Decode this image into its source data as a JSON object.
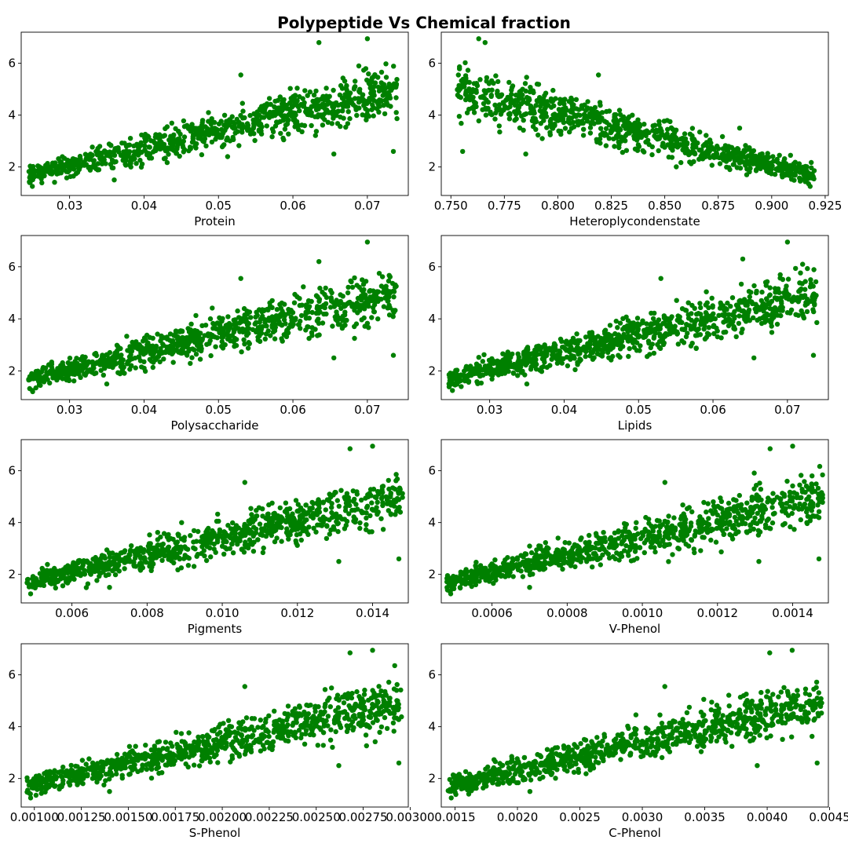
{
  "figure": {
    "title": "Polypeptide Vs Chemical fraction",
    "marker_color": "#008000"
  },
  "chart_data": [
    {
      "type": "scatter",
      "xlabel": "Protein",
      "xlim": [
        0.0235,
        0.0755
      ],
      "ylim": [
        0.9,
        7.2
      ],
      "xticks": [
        0.03,
        0.04,
        0.05,
        0.06,
        0.07
      ],
      "xticklabels": [
        "0.03",
        "0.04",
        "0.05",
        "0.06",
        "0.07"
      ],
      "yticks": [
        2,
        4,
        6
      ],
      "yticklabels": [
        "2",
        "4",
        "6"
      ],
      "grid": false,
      "trend": {
        "x": [
          0.0245,
          0.074
        ],
        "y": [
          1.7,
          5.0
        ]
      },
      "x_range": [
        0.0245,
        0.074
      ],
      "outliers": [
        [
          0.0735,
          2.6
        ],
        [
          0.0655,
          2.5
        ],
        [
          0.053,
          5.55
        ],
        [
          0.0635,
          6.8
        ],
        [
          0.07,
          6.95
        ],
        [
          0.025,
          1.25
        ],
        [
          0.036,
          1.5
        ]
      ]
    },
    {
      "type": "scatter",
      "xlabel": "Heteroplycondenstate",
      "xlim": [
        0.7455,
        0.9265
      ],
      "ylim": [
        0.9,
        7.2
      ],
      "xticks": [
        0.75,
        0.775,
        0.8,
        0.825,
        0.85,
        0.875,
        0.9,
        0.925
      ],
      "xticklabels": [
        "0.750",
        "0.775",
        "0.800",
        "0.825",
        "0.850",
        "0.875",
        "0.900",
        "0.925"
      ],
      "yticks": [
        2,
        4,
        6
      ],
      "yticklabels": [
        "2",
        "4",
        "6"
      ],
      "grid": false,
      "trend": {
        "x": [
          0.753,
          0.92
        ],
        "y": [
          5.0,
          1.7
        ]
      },
      "x_range": [
        0.753,
        0.92
      ],
      "outliers": [
        [
          0.7555,
          2.6
        ],
        [
          0.785,
          2.5
        ],
        [
          0.819,
          5.55
        ],
        [
          0.763,
          6.95
        ],
        [
          0.766,
          6.8
        ],
        [
          0.918,
          1.25
        ],
        [
          0.885,
          3.5
        ]
      ]
    },
    {
      "type": "scatter",
      "xlabel": "Polysaccharide",
      "xlim": [
        0.0235,
        0.0755
      ],
      "ylim": [
        0.9,
        7.2
      ],
      "xticks": [
        0.03,
        0.04,
        0.05,
        0.06,
        0.07
      ],
      "xticklabels": [
        "0.03",
        "0.04",
        "0.05",
        "0.06",
        "0.07"
      ],
      "yticks": [
        2,
        4,
        6
      ],
      "yticklabels": [
        "2",
        "4",
        "6"
      ],
      "grid": false,
      "trend": {
        "x": [
          0.0245,
          0.074
        ],
        "y": [
          1.7,
          5.0
        ]
      },
      "x_range": [
        0.0245,
        0.074
      ],
      "outliers": [
        [
          0.0735,
          2.6
        ],
        [
          0.0655,
          2.5
        ],
        [
          0.053,
          5.55
        ],
        [
          0.0635,
          6.2
        ],
        [
          0.07,
          6.95
        ],
        [
          0.025,
          1.25
        ],
        [
          0.035,
          1.5
        ]
      ]
    },
    {
      "type": "scatter",
      "xlabel": "Lipids",
      "xlim": [
        0.0235,
        0.0755
      ],
      "ylim": [
        0.9,
        7.2
      ],
      "xticks": [
        0.03,
        0.04,
        0.05,
        0.06,
        0.07
      ],
      "xticklabels": [
        "0.03",
        "0.04",
        "0.05",
        "0.06",
        "0.07"
      ],
      "yticks": [
        2,
        4,
        6
      ],
      "yticklabels": [
        "2",
        "4",
        "6"
      ],
      "grid": false,
      "trend": {
        "x": [
          0.0245,
          0.074
        ],
        "y": [
          1.7,
          5.0
        ]
      },
      "x_range": [
        0.0245,
        0.074
      ],
      "outliers": [
        [
          0.0735,
          2.6
        ],
        [
          0.0655,
          2.5
        ],
        [
          0.053,
          5.55
        ],
        [
          0.064,
          6.3
        ],
        [
          0.07,
          6.95
        ],
        [
          0.025,
          1.25
        ],
        [
          0.035,
          1.5
        ]
      ]
    },
    {
      "type": "scatter",
      "xlabel": "Pigments",
      "xlim": [
        0.00465,
        0.01495
      ],
      "ylim": [
        0.9,
        7.2
      ],
      "xticks": [
        0.006,
        0.008,
        0.01,
        0.012,
        0.014
      ],
      "xticklabels": [
        "0.006",
        "0.008",
        "0.010",
        "0.012",
        "0.014"
      ],
      "yticks": [
        2,
        4,
        6
      ],
      "yticklabels": [
        "2",
        "4",
        "6"
      ],
      "grid": false,
      "trend": {
        "x": [
          0.0048,
          0.0148
        ],
        "y": [
          1.7,
          5.0
        ]
      },
      "x_range": [
        0.0048,
        0.0148
      ],
      "outliers": [
        [
          0.0147,
          2.6
        ],
        [
          0.0131,
          2.5
        ],
        [
          0.0106,
          5.55
        ],
        [
          0.0134,
          6.85
        ],
        [
          0.014,
          6.95
        ],
        [
          0.0049,
          1.25
        ],
        [
          0.007,
          1.5
        ]
      ]
    },
    {
      "type": "scatter",
      "xlabel": "V-Phenol",
      "xlim": [
        0.000465,
        0.001495
      ],
      "ylim": [
        0.9,
        7.2
      ],
      "xticks": [
        0.0006,
        0.0008,
        0.001,
        0.0012,
        0.0014
      ],
      "xticklabels": [
        "0.0006",
        "0.0008",
        "0.0010",
        "0.0012",
        "0.0014"
      ],
      "yticks": [
        2,
        4,
        6
      ],
      "yticklabels": [
        "2",
        "4",
        "6"
      ],
      "grid": false,
      "trend": {
        "x": [
          0.00048,
          0.00148
        ],
        "y": [
          1.7,
          5.0
        ]
      },
      "x_range": [
        0.00048,
        0.00148
      ],
      "outliers": [
        [
          0.00147,
          2.6
        ],
        [
          0.00131,
          2.5
        ],
        [
          0.00106,
          5.55
        ],
        [
          0.00134,
          6.85
        ],
        [
          0.0014,
          6.95
        ],
        [
          0.00049,
          1.25
        ],
        [
          0.0007,
          1.5
        ]
      ]
    },
    {
      "type": "scatter",
      "xlabel": "S-Phenol",
      "xlim": [
        0.00093,
        0.00299
      ],
      "ylim": [
        0.9,
        7.2
      ],
      "xticks": [
        0.001,
        0.00125,
        0.0015,
        0.00175,
        0.002,
        0.00225,
        0.0025,
        0.00275,
        0.003
      ],
      "xticklabels": [
        "0.00100",
        "0.00125",
        "0.00150",
        "0.00175",
        "0.00200",
        "0.00225",
        "0.00250",
        "0.00275",
        "0.00300"
      ],
      "yticks": [
        2,
        4,
        6
      ],
      "yticklabels": [
        "2",
        "4",
        "6"
      ],
      "grid": false,
      "trend": {
        "x": [
          0.00096,
          0.00296
        ],
        "y": [
          1.7,
          5.0
        ]
      },
      "x_range": [
        0.00096,
        0.00296
      ],
      "outliers": [
        [
          0.00294,
          2.6
        ],
        [
          0.00262,
          2.5
        ],
        [
          0.00212,
          5.55
        ],
        [
          0.00268,
          6.85
        ],
        [
          0.0028,
          6.95
        ],
        [
          0.00098,
          1.25
        ],
        [
          0.0014,
          1.5
        ]
      ]
    },
    {
      "type": "scatter",
      "xlabel": "C-Phenol",
      "xlim": [
        0.00139,
        0.00449
      ],
      "ylim": [
        0.9,
        7.2
      ],
      "xticks": [
        0.0015,
        0.002,
        0.0025,
        0.003,
        0.0035,
        0.004,
        0.0045
      ],
      "xticklabels": [
        "0.0015",
        "0.0020",
        "0.0025",
        "0.0030",
        "0.0035",
        "0.0040",
        "0.0045"
      ],
      "yticks": [
        2,
        4,
        6
      ],
      "yticklabels": [
        "2",
        "4",
        "6"
      ],
      "grid": false,
      "trend": {
        "x": [
          0.00144,
          0.00444
        ],
        "y": [
          1.7,
          5.0
        ]
      },
      "x_range": [
        0.00144,
        0.00444
      ],
      "outliers": [
        [
          0.0044,
          2.6
        ],
        [
          0.00392,
          2.5
        ],
        [
          0.00318,
          5.55
        ],
        [
          0.00402,
          6.85
        ],
        [
          0.0042,
          6.95
        ],
        [
          0.00147,
          1.25
        ],
        [
          0.0021,
          1.5
        ]
      ]
    }
  ]
}
